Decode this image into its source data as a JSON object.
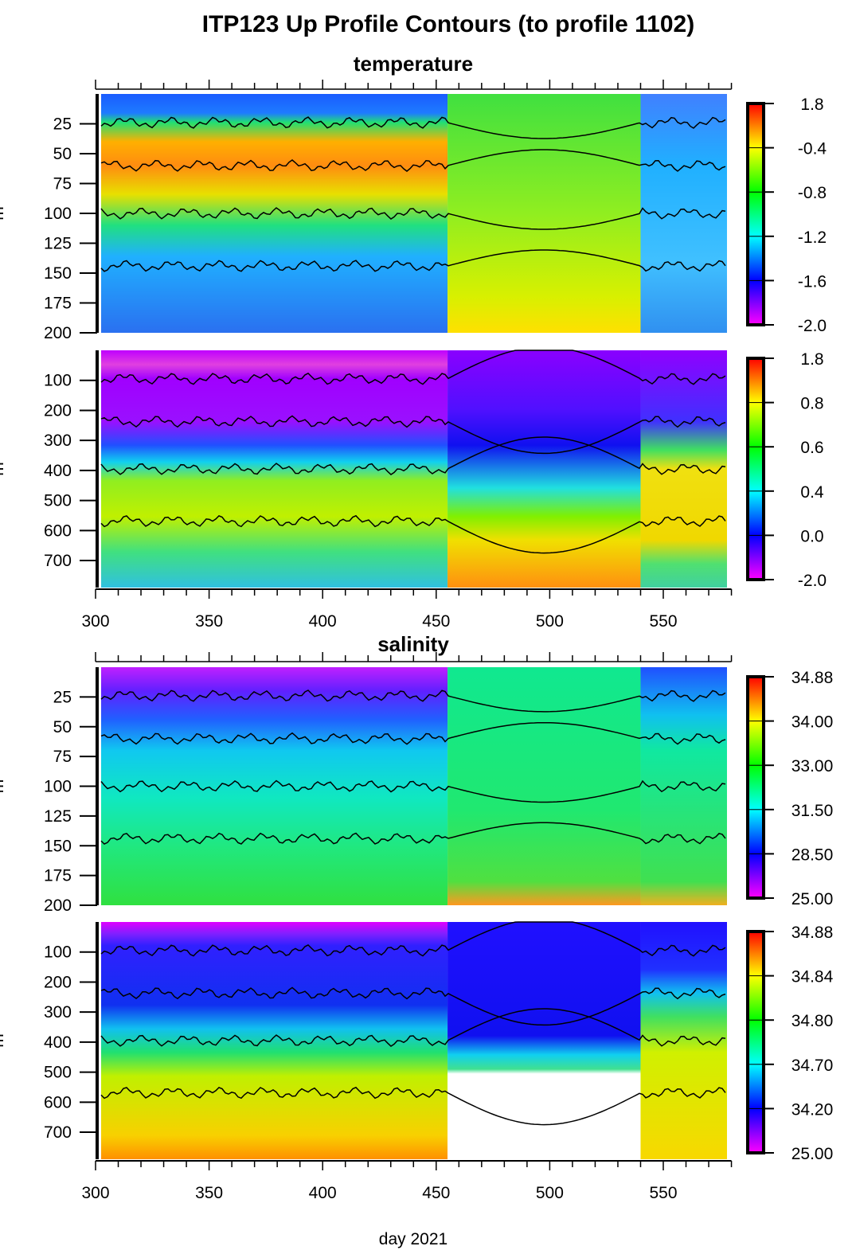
{
  "chart_data": [
    {
      "type": "heatmap",
      "title": "ITP123 Up Profile Contours (to profile 1102)",
      "section": "temperature",
      "xlabel": "day 2021",
      "xlim": [
        300,
        580
      ],
      "xticks": [
        "300",
        "350",
        "400",
        "450",
        "500",
        "550"
      ],
      "panels": [
        {
          "ylim": [
            200,
            0
          ],
          "yticks": [
            "25",
            "50",
            "75",
            "100",
            "125",
            "150",
            "175",
            "200"
          ],
          "ylabel": "m",
          "colorbar": {
            "labels": [
              "1.8",
              "-0.4",
              "-0.8",
              "-1.2",
              "-1.6",
              "-2.0"
            ]
          }
        },
        {
          "ylim": [
            790,
            0
          ],
          "yticks": [
            "100",
            "200",
            "300",
            "400",
            "500",
            "600",
            "700"
          ],
          "ylabel": "m",
          "colorbar": {
            "labels": [
              "1.8",
              "0.8",
              "0.6",
              "0.4",
              "0.0",
              "-2.0"
            ]
          }
        }
      ]
    },
    {
      "type": "heatmap",
      "section": "salinity",
      "xlabel": "day 2021",
      "xlim": [
        300,
        580
      ],
      "xticks": [
        "300",
        "350",
        "400",
        "450",
        "500",
        "550"
      ],
      "panels": [
        {
          "ylim": [
            200,
            0
          ],
          "yticks": [
            "25",
            "50",
            "75",
            "100",
            "125",
            "150",
            "175",
            "200"
          ],
          "ylabel": "m",
          "colorbar": {
            "labels": [
              "34.88",
              "34.00",
              "33.00",
              "31.50",
              "28.50",
              "25.00"
            ]
          }
        },
        {
          "ylim": [
            790,
            0
          ],
          "yticks": [
            "100",
            "200",
            "300",
            "400",
            "500",
            "600",
            "700"
          ],
          "ylabel": "m",
          "colorbar": {
            "labels": [
              "34.88",
              "34.84",
              "34.80",
              "34.70",
              "34.20",
              "25.00"
            ]
          }
        }
      ]
    }
  ],
  "colormap": [
    "#ff00ff",
    "#0000ff",
    "#00ffff",
    "#00ff00",
    "#ffff00",
    "#ff0000"
  ]
}
